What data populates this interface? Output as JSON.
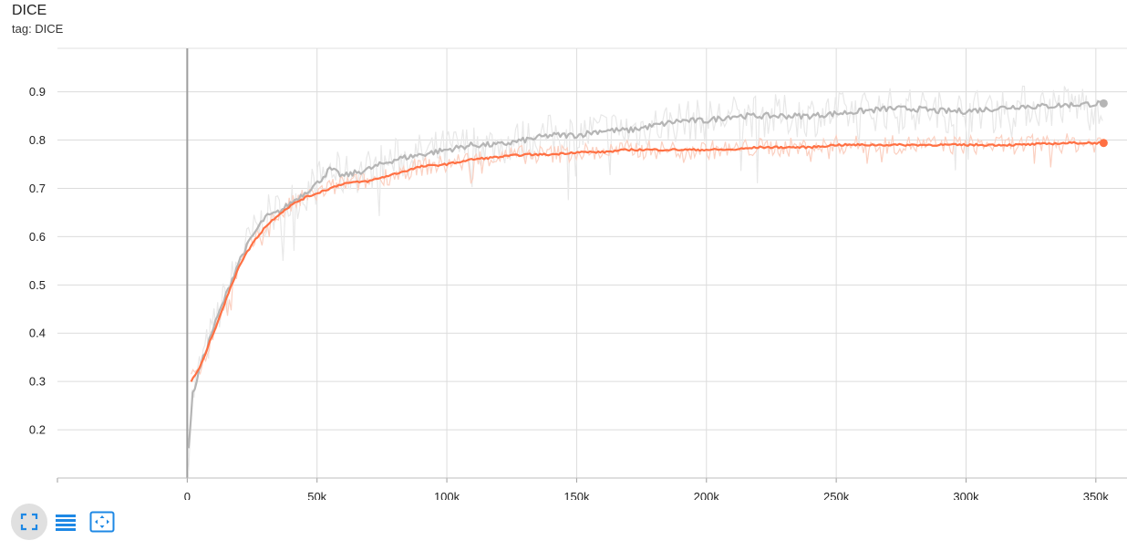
{
  "card": {
    "title": "DICE",
    "subtitle": "tag: DICE"
  },
  "toolbar": {
    "buttons": [
      {
        "icon": "fullscreen-icon"
      },
      {
        "icon": "data-list-icon"
      },
      {
        "icon": "fit-domain-icon"
      }
    ]
  },
  "colors": {
    "orange_run": "#ff7043",
    "gray_run": "#b5b5b5",
    "accent": "#1e88e5"
  },
  "chart_data": {
    "type": "line",
    "title": "DICE",
    "xlim": [
      -50000,
      362000
    ],
    "ylim": [
      0.1,
      0.99
    ],
    "x_ticks": [
      0,
      50000,
      100000,
      150000,
      200000,
      250000,
      300000,
      350000
    ],
    "x_tick_labels": [
      "0",
      "50k",
      "100k",
      "150k",
      "200k",
      "250k",
      "300k",
      "350k"
    ],
    "y_ticks": [
      0.2,
      0.3,
      0.4,
      0.5,
      0.6,
      0.7,
      0.8,
      0.9
    ],
    "y_tick_labels": [
      "0.2",
      "0.3",
      "0.4",
      "0.5",
      "0.6",
      "0.7",
      "0.8",
      "0.9"
    ],
    "grid": true,
    "series": [
      {
        "color": "#b5b5b5",
        "raw_color": "#e8e8e8",
        "x": [
          500,
          2000,
          5000,
          10000,
          15000,
          20000,
          25000,
          30000,
          35000,
          40000,
          45000,
          50000,
          55000,
          60000,
          70000,
          80000,
          90000,
          100000,
          110000,
          120000,
          130000,
          140000,
          150000,
          160000,
          170000,
          180000,
          190000,
          200000,
          210000,
          220000,
          230000,
          240000,
          250000,
          260000,
          270000,
          280000,
          290000,
          300000,
          310000,
          320000,
          330000,
          340000,
          353000
        ],
        "y": [
          0.16,
          0.27,
          0.33,
          0.41,
          0.48,
          0.55,
          0.6,
          0.64,
          0.65,
          0.67,
          0.69,
          0.71,
          0.74,
          0.725,
          0.74,
          0.76,
          0.77,
          0.78,
          0.79,
          0.79,
          0.8,
          0.81,
          0.81,
          0.82,
          0.82,
          0.83,
          0.84,
          0.84,
          0.85,
          0.85,
          0.85,
          0.85,
          0.855,
          0.86,
          0.865,
          0.865,
          0.86,
          0.86,
          0.865,
          0.87,
          0.87,
          0.873,
          0.876
        ]
      },
      {
        "color": "#ff7043",
        "raw_color": "#fbd0c1",
        "x": [
          1500,
          5000,
          10000,
          15000,
          20000,
          25000,
          30000,
          35000,
          40000,
          45000,
          50000,
          55000,
          60000,
          70000,
          80000,
          90000,
          100000,
          110000,
          120000,
          130000,
          140000,
          150000,
          160000,
          170000,
          180000,
          190000,
          200000,
          210000,
          220000,
          230000,
          240000,
          250000,
          260000,
          270000,
          280000,
          290000,
          300000,
          310000,
          320000,
          330000,
          340000,
          353000
        ],
        "y": [
          0.3,
          0.33,
          0.4,
          0.47,
          0.54,
          0.585,
          0.62,
          0.645,
          0.665,
          0.68,
          0.69,
          0.7,
          0.71,
          0.715,
          0.73,
          0.745,
          0.75,
          0.76,
          0.765,
          0.77,
          0.77,
          0.775,
          0.775,
          0.78,
          0.78,
          0.78,
          0.78,
          0.78,
          0.785,
          0.785,
          0.785,
          0.79,
          0.79,
          0.79,
          0.79,
          0.79,
          0.79,
          0.79,
          0.79,
          0.792,
          0.794,
          0.794
        ]
      }
    ]
  }
}
